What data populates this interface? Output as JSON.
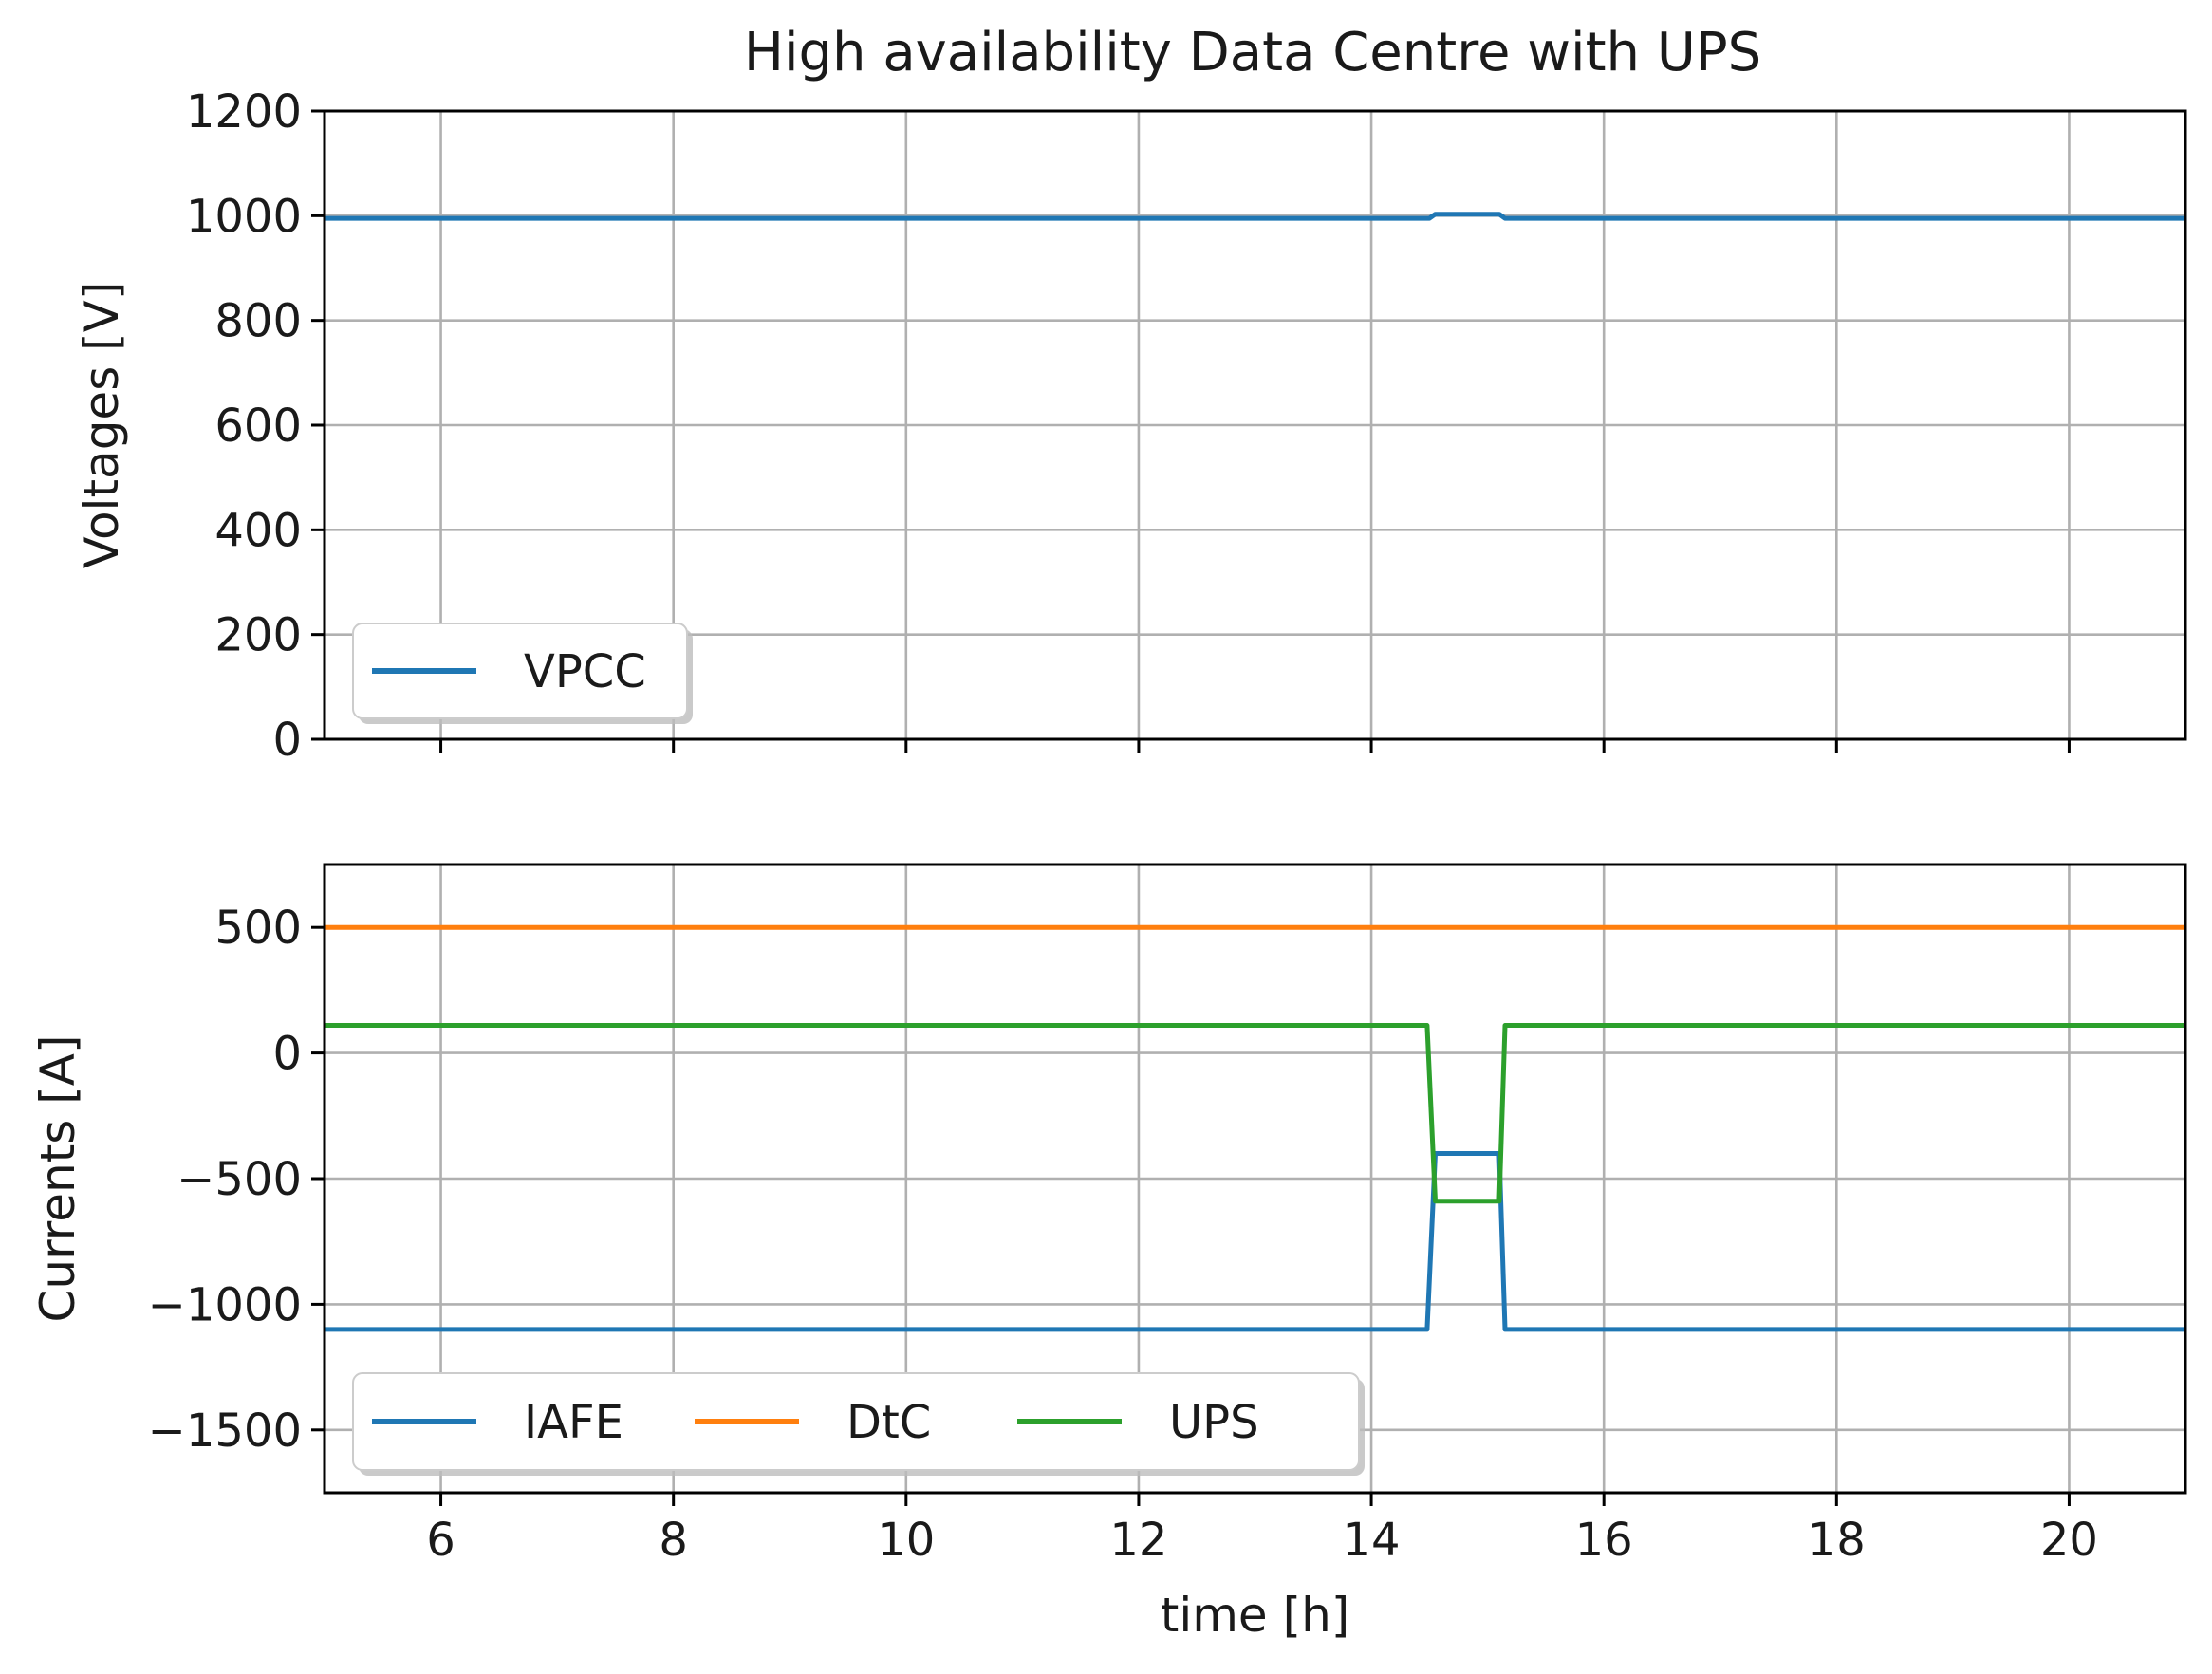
{
  "chart_data": [
    {
      "type": "line",
      "title": "High availability Data Centre with UPS",
      "xlabel": "",
      "ylabel": "Voltages [V]",
      "xlim": [
        5,
        21
      ],
      "ylim": [
        0,
        1200
      ],
      "x_ticks": [
        "6",
        "8",
        "10",
        "12",
        "14",
        "16",
        "18",
        "20"
      ],
      "x_tick_values": [
        6,
        8,
        10,
        12,
        14,
        16,
        18,
        20
      ],
      "y_ticks": [
        "0",
        "200",
        "400",
        "600",
        "800",
        "1000",
        "1200"
      ],
      "y_tick_values": [
        0,
        200,
        400,
        600,
        800,
        1000,
        1200
      ],
      "grid": true,
      "legend": "lower-left",
      "series": [
        {
          "name": "VPCC",
          "color": "#1f77b4",
          "x": [
            5,
            14.5,
            14.55,
            15.1,
            15.15,
            21
          ],
          "y": [
            995,
            995,
            1003,
            1003,
            995,
            995
          ]
        }
      ]
    },
    {
      "type": "line",
      "title": "",
      "xlabel": "time [h]",
      "ylabel": "Currents [A]",
      "xlim": [
        5,
        21
      ],
      "ylim": [
        -1750,
        750
      ],
      "x_ticks": [
        "6",
        "8",
        "10",
        "12",
        "14",
        "16",
        "18",
        "20"
      ],
      "x_tick_values": [
        6,
        8,
        10,
        12,
        14,
        16,
        18,
        20
      ],
      "y_ticks": [
        "500",
        "0",
        "−500",
        "−1000",
        "−1500"
      ],
      "y_tick_values": [
        500,
        0,
        -500,
        -1000,
        -1500
      ],
      "grid": true,
      "legend": "lower-left",
      "series": [
        {
          "name": "IAFE",
          "color": "#1f77b4",
          "x": [
            5,
            14.48,
            14.55,
            15.1,
            15.15,
            21
          ],
          "y": [
            -1100,
            -1100,
            -400,
            -400,
            -1100,
            -1100
          ]
        },
        {
          "name": "DtC",
          "color": "#ff7f0e",
          "x": [
            5,
            21
          ],
          "y": [
            500,
            500
          ]
        },
        {
          "name": "UPS",
          "color": "#2ca02c",
          "x": [
            5,
            14.48,
            14.55,
            15.1,
            15.15,
            21
          ],
          "y": [
            110,
            110,
            -590,
            -590,
            110,
            110
          ]
        }
      ]
    }
  ]
}
